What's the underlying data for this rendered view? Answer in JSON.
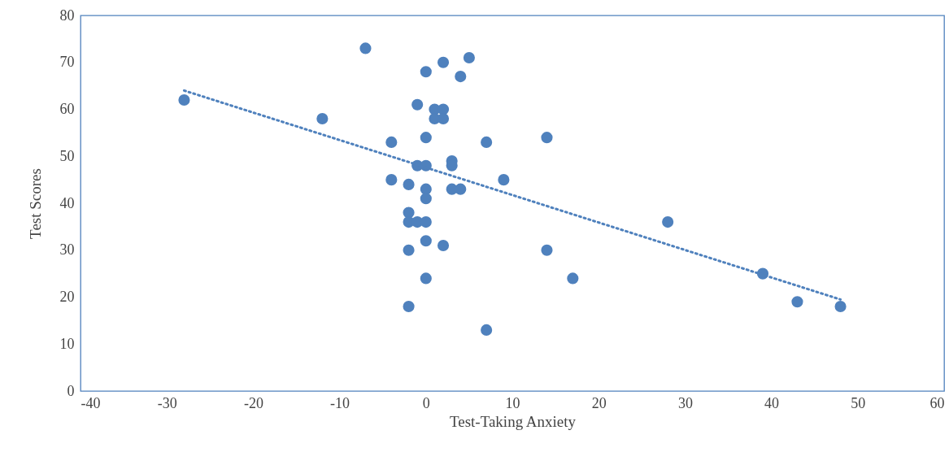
{
  "chart_data": {
    "type": "scatter",
    "xlabel": "Test-Taking Anxiety",
    "ylabel": "Test Scores",
    "marker": "circle",
    "grid": false,
    "xlim": [
      -40,
      60
    ],
    "xticks": [
      -40,
      -30,
      -20,
      -10,
      0,
      10,
      20,
      30,
      40,
      50,
      60
    ],
    "ylim": [
      0,
      80
    ],
    "yticks": [
      0,
      10,
      20,
      30,
      40,
      50,
      60,
      70,
      80
    ],
    "series": [
      {
        "color": "#4f81bd",
        "x": [
          -28,
          -12,
          -7,
          -4,
          -4,
          -2,
          -2,
          -2,
          -1,
          0,
          -2,
          -2,
          -1,
          -1,
          0,
          0,
          0,
          0,
          0,
          0,
          0,
          1,
          2,
          1,
          2,
          2,
          4,
          5,
          3,
          3,
          3,
          4,
          2,
          7,
          7,
          9,
          14,
          14,
          17,
          28,
          39,
          43,
          48
        ],
        "values": [
          62,
          58,
          73,
          53,
          45,
          44,
          38,
          36,
          36,
          36,
          30,
          18,
          61,
          48,
          48,
          68,
          54,
          43,
          41,
          32,
          24,
          60,
          60,
          58,
          58,
          70,
          67,
          71,
          49,
          48,
          43,
          43,
          31,
          53,
          13,
          45,
          54,
          30,
          24,
          36,
          25,
          19,
          18
        ]
      },
      {
        "type": "line",
        "marker": "none",
        "color": "#4f81bd",
        "line_style": "dotted",
        "x": [
          -28,
          48
        ],
        "values": [
          64,
          19.5
        ]
      }
    ]
  }
}
